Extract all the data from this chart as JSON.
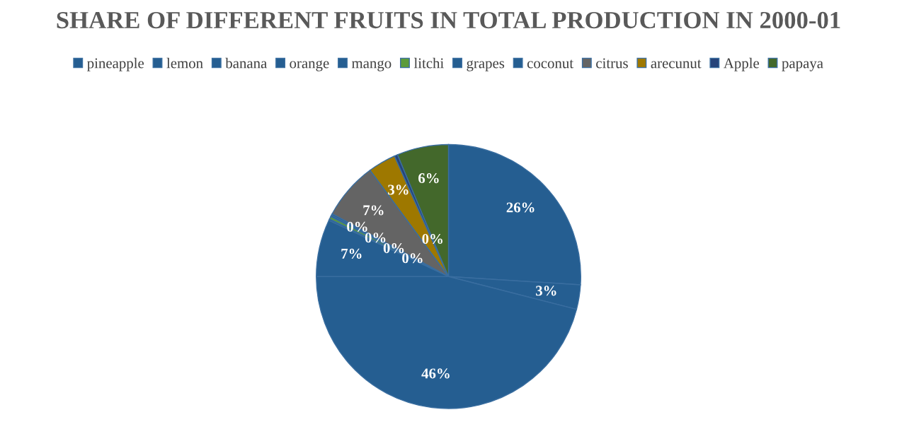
{
  "chart_data": {
    "type": "pie",
    "title": "SHARE OF DIFFERENT FRUITS IN TOTAL PRODUCTION IN 2000-01",
    "categories": [
      "pineapple",
      "lemon",
      "banana",
      "orange",
      "mango",
      "litchi",
      "grapes",
      "coconut",
      "citrus",
      "arecunut",
      "Apple",
      "papaya"
    ],
    "values": [
      26,
      3,
      46,
      7,
      0.2,
      0.3,
      0.2,
      0.2,
      7,
      3.4,
      0.4,
      6.3
    ],
    "value_labels": [
      "26%",
      "3%",
      "46%",
      "7%",
      "0%",
      "0%",
      "0%",
      "0%",
      "7%",
      "3%",
      "0%",
      "6%"
    ],
    "colors": [
      "#255e91",
      "#255e91",
      "#255e91",
      "#255e91",
      "#255e91",
      "#5b9b3a",
      "#255e91",
      "#255e91",
      "#646464",
      "#9e7800",
      "#26447a",
      "#43682b"
    ],
    "legend": "top"
  }
}
